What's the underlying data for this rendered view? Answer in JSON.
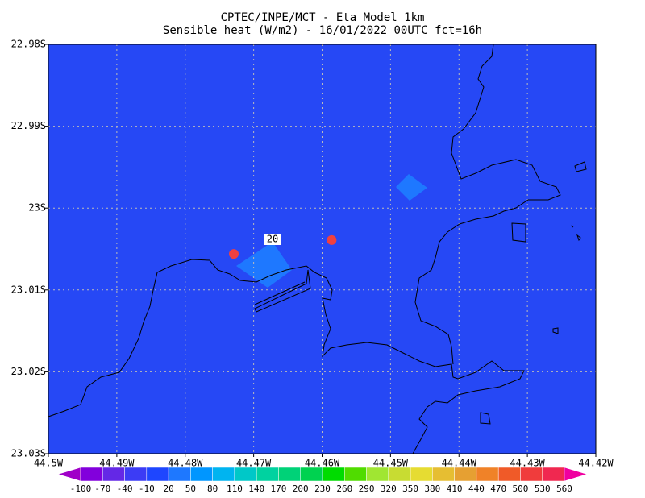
{
  "chart_data": {
    "type": "map",
    "title": "CPTEC/INPE/MCT -  Eta Model 1km",
    "subtitle": "Sensible heat (W/m2) - 16/01/2022 00UTC fct=16h",
    "xlim": [
      -44.5,
      -44.42
    ],
    "ylim": [
      -23.03,
      -22.98
    ],
    "xticks": [
      {
        "value": -44.5,
        "label": "44.5W"
      },
      {
        "value": -44.49,
        "label": "44.49W"
      },
      {
        "value": -44.48,
        "label": "44.48W"
      },
      {
        "value": -44.47,
        "label": "44.47W"
      },
      {
        "value": -44.46,
        "label": "44.46W"
      },
      {
        "value": -44.45,
        "label": "44.45W"
      },
      {
        "value": -44.44,
        "label": "44.44W"
      },
      {
        "value": -44.43,
        "label": "44.43W"
      },
      {
        "value": -44.42,
        "label": "44.42W"
      }
    ],
    "yticks": [
      {
        "value": -22.98,
        "label": "22.98S"
      },
      {
        "value": -22.99,
        "label": "22.99S"
      },
      {
        "value": -23.0,
        "label": "23S"
      },
      {
        "value": -23.01,
        "label": "23.01S"
      },
      {
        "value": -23.02,
        "label": "23.02S"
      },
      {
        "value": -23.03,
        "label": "23.03S"
      }
    ],
    "grid": true,
    "field_color": "#2648f5",
    "contour_label": "20",
    "markers": {
      "color": "#f04040",
      "lon": [
        -44.4729,
        -44.4586
      ],
      "lat": [
        -23.0056,
        -23.0039
      ]
    },
    "colorbar": {
      "levels": [
        -100,
        -70,
        -40,
        -10,
        20,
        50,
        80,
        110,
        140,
        170,
        200,
        230,
        260,
        290,
        320,
        350,
        380,
        410,
        440,
        470,
        500,
        530,
        560
      ],
      "colors": [
        "#a000c8",
        "#8200dc",
        "#6428e6",
        "#3c3cf5",
        "#1e46ff",
        "#1e78ff",
        "#0096ff",
        "#00b4f0",
        "#00c8c8",
        "#00d2a0",
        "#00d278",
        "#00d250",
        "#00dc00",
        "#50dc00",
        "#a0e632",
        "#c8dc32",
        "#e6dc32",
        "#e6be32",
        "#e6a032",
        "#f08228",
        "#f05a28",
        "#f03c3c",
        "#f02850",
        "#f01e78",
        "#f000a0"
      ]
    }
  }
}
